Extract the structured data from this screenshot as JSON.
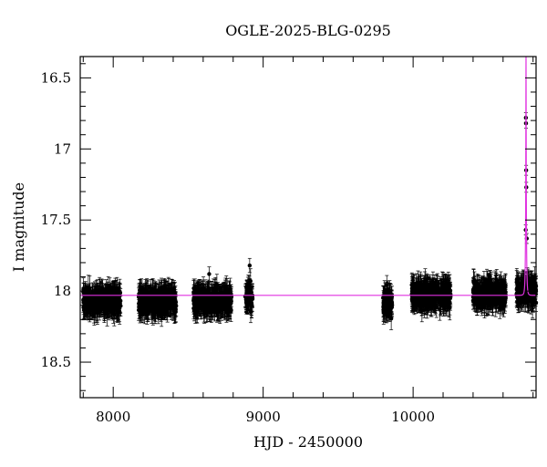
{
  "chart_data": {
    "type": "scatter",
    "title": "OGLE-2025-BLG-0295",
    "xlabel": "HJD - 2450000",
    "ylabel": "I magnitude",
    "xlim": [
      7780,
      10820
    ],
    "ylim": [
      18.75,
      16.35
    ],
    "y_inverted": true,
    "x_ticks": [
      8000,
      9000,
      10000
    ],
    "y_ticks": [
      16.5,
      17,
      17.5,
      18,
      18.5
    ],
    "baseline_mag": 18.03,
    "series": [
      {
        "kind": "photometry",
        "marker_color": "#000000",
        "error_bars": true,
        "seasons": [
          {
            "x_start": 7800,
            "x_end": 8050,
            "mean_mag": 18.07
          },
          {
            "x_start": 8170,
            "x_end": 8420,
            "mean_mag": 18.07
          },
          {
            "x_start": 8535,
            "x_end": 8790,
            "mean_mag": 18.07
          },
          {
            "x_start": 8880,
            "x_end": 8930,
            "mean_mag": 18.03
          },
          {
            "x_start": 9800,
            "x_end": 9860,
            "mean_mag": 18.08
          },
          {
            "x_start": 9990,
            "x_end": 10250,
            "mean_mag": 18.03
          },
          {
            "x_start": 10400,
            "x_end": 10620,
            "mean_mag": 18.02
          },
          {
            "x_start": 10690,
            "x_end": 10820,
            "mean_mag": 18.0
          }
        ],
        "outliers": [
          {
            "x": 8910,
            "y": 17.82
          },
          {
            "x": 8640,
            "y": 17.88
          },
          {
            "x": 10740,
            "y": 18.06
          }
        ],
        "event_points": [
          {
            "x": 10752,
            "y": 16.78
          },
          {
            "x": 10753,
            "y": 16.82
          },
          {
            "x": 10754,
            "y": 17.15
          },
          {
            "x": 10755,
            "y": 17.27
          },
          {
            "x": 10751,
            "y": 17.57
          },
          {
            "x": 10758,
            "y": 17.63
          },
          {
            "x": 10762,
            "y": 17.87
          },
          {
            "x": 10748,
            "y": 17.93
          }
        ]
      },
      {
        "kind": "model",
        "line_color": "#e030e0",
        "t0": 10753,
        "u0": 0.12,
        "tE": 6,
        "fs": 0.5
      }
    ],
    "grid": false,
    "legend": "none"
  }
}
